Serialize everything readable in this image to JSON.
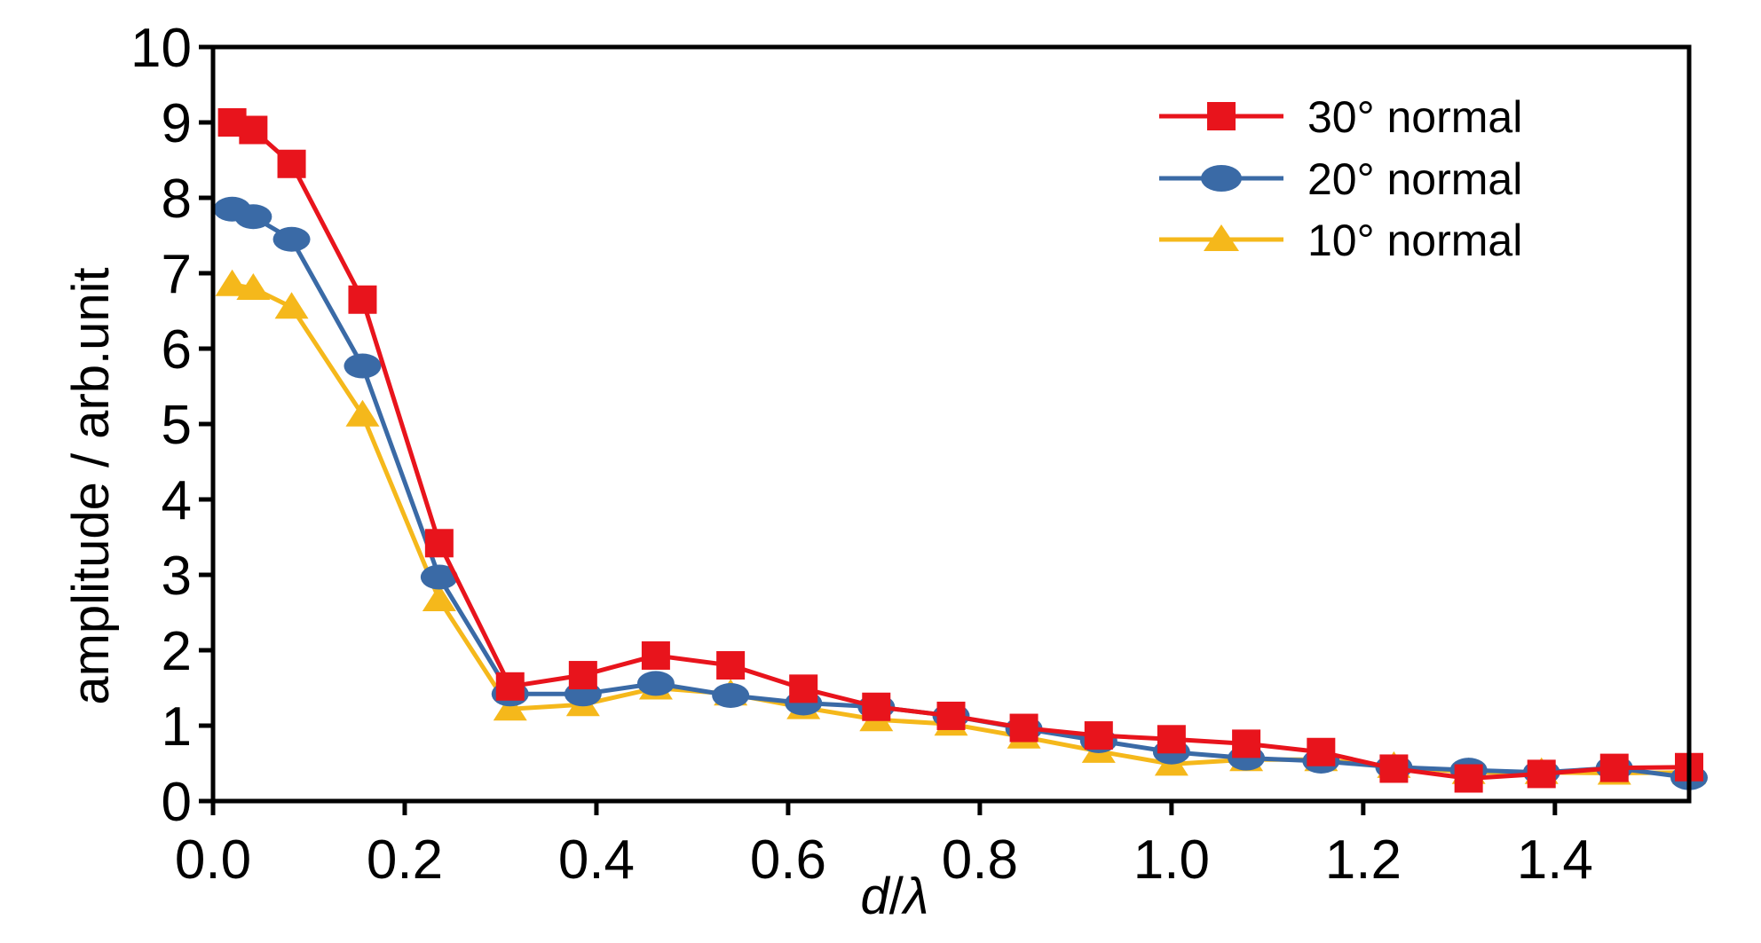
{
  "chart_data": {
    "type": "line",
    "xlabel_var": "d",
    "xlabel_sep": "/",
    "xlabel_sym": "λ",
    "ylabel": "amplitude / arb.unit",
    "xlim": [
      0.0,
      1.54
    ],
    "ylim": [
      0,
      10
    ],
    "xticks": [
      "0.0",
      "0.2",
      "0.4",
      "0.6",
      "0.8",
      "1.0",
      "1.2",
      "1.4"
    ],
    "xtick_values": [
      0.0,
      0.2,
      0.4,
      0.6,
      0.8,
      1.0,
      1.2,
      1.4
    ],
    "yticks": [
      "0",
      "1",
      "2",
      "3",
      "4",
      "5",
      "6",
      "7",
      "8",
      "9",
      "10"
    ],
    "ytick_values": [
      0,
      1,
      2,
      3,
      4,
      5,
      6,
      7,
      8,
      9,
      10
    ],
    "legend_position": "top-right",
    "grid": false,
    "series": [
      {
        "name": "30° normal",
        "color": "#e8141c",
        "marker": "square",
        "x": [
          0.02,
          0.042,
          0.082,
          0.156,
          0.236,
          0.31,
          0.386,
          0.462,
          0.54,
          0.616,
          0.692,
          0.77,
          0.846,
          0.924,
          1.0,
          1.078,
          1.156,
          1.232,
          1.31,
          1.386,
          1.462,
          1.54
        ],
        "y": [
          9.0,
          8.9,
          8.45,
          6.65,
          3.42,
          1.52,
          1.67,
          1.93,
          1.8,
          1.49,
          1.25,
          1.13,
          0.97,
          0.87,
          0.82,
          0.76,
          0.65,
          0.43,
          0.3,
          0.36,
          0.44,
          0.45
        ]
      },
      {
        "name": "20° normal",
        "color": "#3a6aa6",
        "marker": "circle",
        "x": [
          0.02,
          0.042,
          0.082,
          0.156,
          0.236,
          0.31,
          0.386,
          0.462,
          0.54,
          0.616,
          0.692,
          0.77,
          0.846,
          0.924,
          1.0,
          1.078,
          1.156,
          1.232,
          1.31,
          1.386,
          1.462,
          1.54
        ],
        "y": [
          7.85,
          7.75,
          7.45,
          5.77,
          2.97,
          1.42,
          1.42,
          1.56,
          1.4,
          1.3,
          1.25,
          1.13,
          0.96,
          0.8,
          0.65,
          0.57,
          0.53,
          0.45,
          0.41,
          0.38,
          0.44,
          0.31
        ]
      },
      {
        "name": "10° normal",
        "color": "#f5b81b",
        "marker": "triangle",
        "x": [
          0.02,
          0.042,
          0.082,
          0.156,
          0.236,
          0.31,
          0.386,
          0.462,
          0.54,
          0.616,
          0.692,
          0.77,
          0.846,
          0.924,
          1.0,
          1.078,
          1.156,
          1.232,
          1.31,
          1.386,
          1.462,
          1.54
        ],
        "y": [
          6.85,
          6.8,
          6.55,
          5.12,
          2.67,
          1.22,
          1.28,
          1.5,
          1.42,
          1.24,
          1.08,
          1.02,
          0.85,
          0.66,
          0.49,
          0.55,
          0.55,
          0.46,
          0.38,
          0.38,
          0.37,
          0.38
        ]
      }
    ]
  }
}
